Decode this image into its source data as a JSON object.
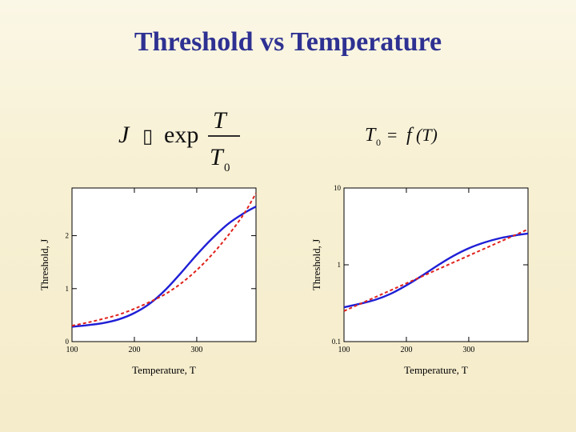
{
  "slide": {
    "title": "Threshold vs Temperature",
    "title_color": "#2e3192"
  },
  "formulas": {
    "left": {
      "lhs": "J",
      "symbol": "▯",
      "func": "exp",
      "numerator": "T",
      "denominator": "T",
      "denominator_sub": "0"
    },
    "right": {
      "lhs": "T",
      "lhs_sub": "0",
      "equals": "=",
      "rhs_f": "f",
      "rhs_arg": "(T)"
    }
  },
  "colors": {
    "model_line": "#1f1fd6",
    "fit_dashed": "#e0221b",
    "axis": "#000000",
    "background": "#f7f0d3"
  },
  "chart_data": [
    {
      "type": "line",
      "xscale": "linear",
      "yscale": "linear",
      "xlabel": "Temperature, T",
      "ylabel": "Threshold, J",
      "xlim": [
        100,
        395
      ],
      "ylim": [
        0,
        2.9
      ],
      "xticks": [
        "100",
        "200",
        "300"
      ],
      "yticks": [
        "0",
        "1",
        "2"
      ],
      "series": [
        {
          "style": "solid",
          "color": "#1f1fd6",
          "x": [
            100,
            125,
            150,
            175,
            200,
            225,
            250,
            275,
            300,
            325,
            350,
            375,
            395
          ],
          "y": [
            0.28,
            0.31,
            0.35,
            0.42,
            0.54,
            0.72,
            0.98,
            1.3,
            1.64,
            1.95,
            2.22,
            2.42,
            2.55
          ]
        },
        {
          "style": "dashed",
          "color": "#e0221b",
          "x": [
            100,
            125,
            150,
            175,
            200,
            225,
            250,
            275,
            300,
            325,
            350,
            375,
            395
          ],
          "y": [
            0.3,
            0.36,
            0.43,
            0.51,
            0.62,
            0.75,
            0.9,
            1.1,
            1.35,
            1.65,
            2.0,
            2.4,
            2.8
          ]
        }
      ]
    },
    {
      "type": "line",
      "xscale": "linear",
      "yscale": "log",
      "xlabel": "Temperature, T",
      "ylabel": "Threshold, J",
      "xlim": [
        100,
        395
      ],
      "ylim": [
        0.1,
        10
      ],
      "xticks": [
        "100",
        "200",
        "300"
      ],
      "yticks": [
        "0.1",
        "1",
        "10"
      ],
      "series": [
        {
          "style": "solid",
          "color": "#1f1fd6",
          "x": [
            100,
            125,
            150,
            175,
            200,
            225,
            250,
            275,
            300,
            325,
            350,
            375,
            395
          ],
          "y": [
            0.28,
            0.31,
            0.35,
            0.42,
            0.54,
            0.72,
            0.98,
            1.3,
            1.64,
            1.95,
            2.22,
            2.42,
            2.55
          ]
        },
        {
          "style": "dashed",
          "color": "#e0221b",
          "x": [
            100,
            395
          ],
          "y": [
            0.25,
            2.9
          ]
        }
      ]
    }
  ]
}
